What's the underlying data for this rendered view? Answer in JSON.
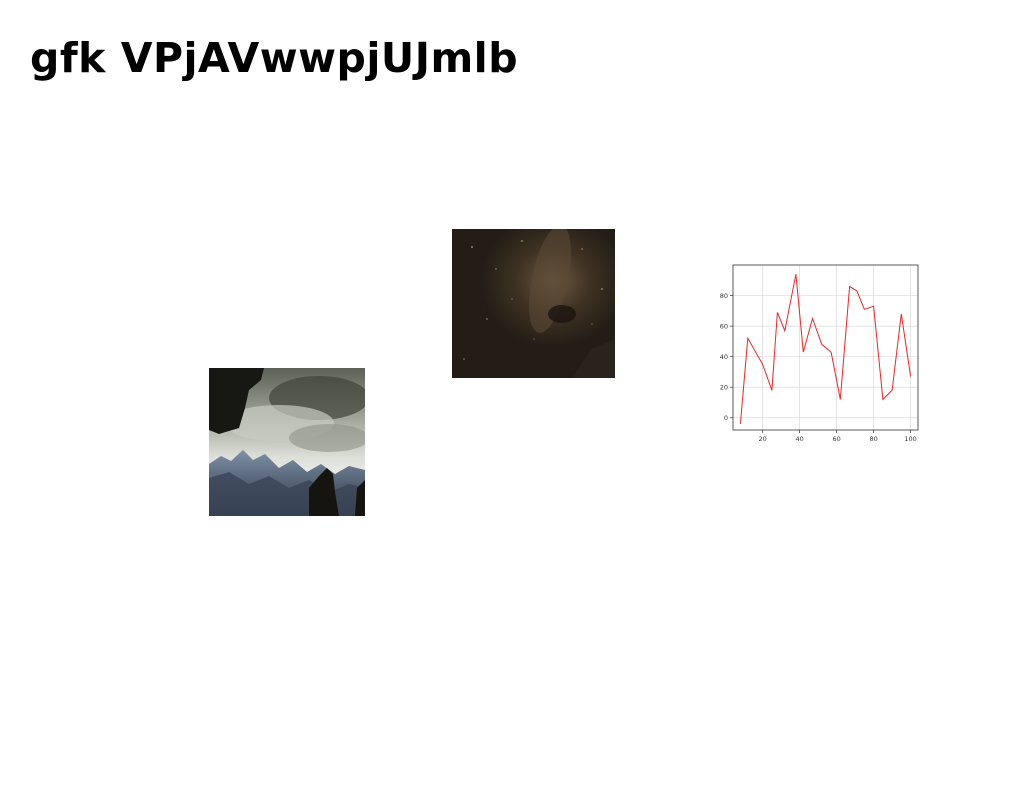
{
  "page": {
    "title": "gfk VPjAVwwpjUJmlb"
  },
  "images": [
    {
      "name": "photo-mountains-clouds",
      "subject": "storm clouds over snowy mountain ridge with dark rock silhouettes"
    },
    {
      "name": "photo-milky-way",
      "subject": "dark brown night sky with milky way band"
    }
  ],
  "chart_data": {
    "type": "line",
    "x": [
      8,
      12,
      20,
      25,
      28,
      32,
      38,
      42,
      47,
      52,
      57,
      62,
      67,
      71,
      75,
      80,
      85,
      90,
      95,
      100
    ],
    "series": [
      {
        "values": [
          -4,
          52,
          35,
          18,
          69,
          57,
          94,
          43,
          65,
          48,
          43,
          12,
          86,
          83,
          71,
          73,
          12,
          18,
          68,
          27
        ],
        "color": "#e8262b"
      }
    ],
    "xticks": [
      "20",
      "40",
      "60",
      "80",
      "100"
    ],
    "yticks": [
      "0",
      "20",
      "40",
      "60",
      "80"
    ],
    "xlim": [
      4,
      104
    ],
    "ylim": [
      -8,
      100
    ],
    "grid": true,
    "title": "",
    "xlabel": "",
    "ylabel": ""
  }
}
